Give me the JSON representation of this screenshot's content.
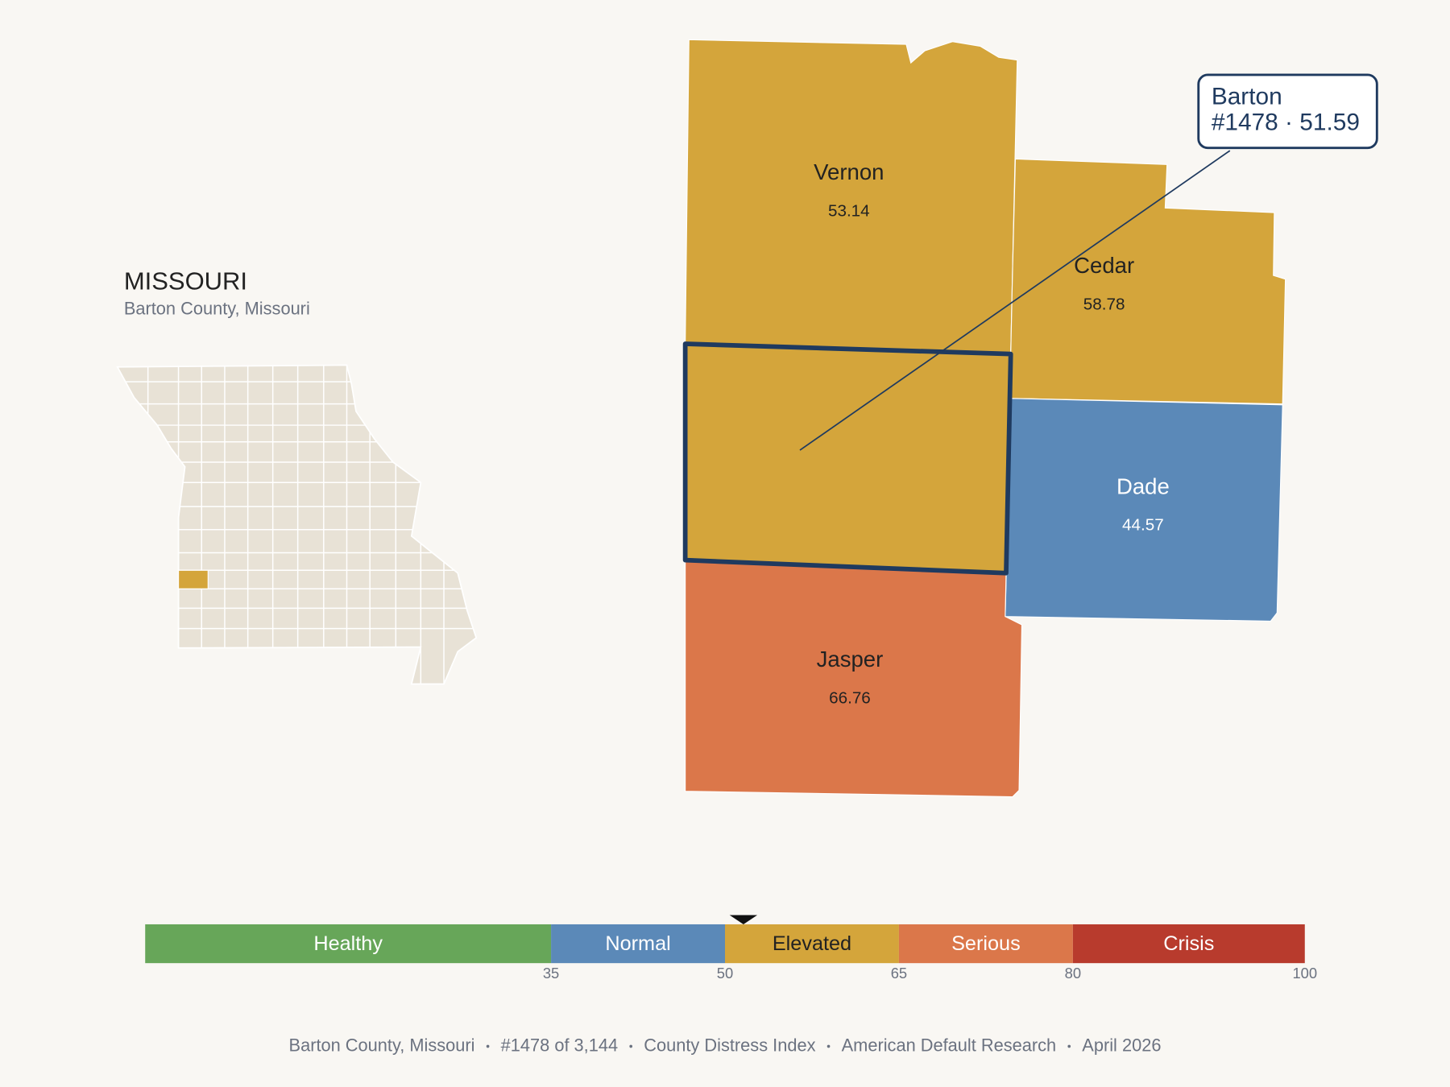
{
  "header": {
    "title": "MISSOURI",
    "subtitle": "Barton County, Missouri"
  },
  "map": {
    "counties": [
      {
        "name": "Vernon",
        "value": 53.14,
        "color": "#d4a53b",
        "text_color": "#222222"
      },
      {
        "name": "Cedar",
        "value": 58.78,
        "color": "#d4a53b",
        "text_color": "#222222"
      },
      {
        "name": "Dade",
        "value": 44.57,
        "color": "#5b89b8",
        "text_color": "#ffffff"
      },
      {
        "name": "Jasper",
        "value": 66.76,
        "color": "#db774a",
        "text_color": "#222222"
      }
    ],
    "selected": {
      "color": "#d4a53b",
      "outline": "#1f3a5f"
    },
    "callout": {
      "name": "Barton",
      "text": "#1478 · 51.59"
    }
  },
  "legend": {
    "range": [
      0,
      100
    ],
    "bands": [
      {
        "label": "Healthy",
        "color": "#67a659",
        "text_color": "#ffffff"
      },
      {
        "label": "Normal",
        "color": "#5b89b8",
        "text_color": "#ffffff"
      },
      {
        "label": "Elevated",
        "color": "#d4a53b",
        "text_color": "#222222"
      },
      {
        "label": "Serious",
        "color": "#db774a",
        "text_color": "#ffffff"
      },
      {
        "label": "Crisis",
        "color": "#b83b2d",
        "text_color": "#ffffff"
      }
    ],
    "ticks": [
      35,
      50,
      65,
      80,
      100
    ],
    "marker": 51.59
  },
  "footer": {
    "items": [
      "Barton County, Missouri",
      "#1478 of 3,144",
      "County Distress Index",
      "American Default Research",
      "April 2026"
    ]
  }
}
